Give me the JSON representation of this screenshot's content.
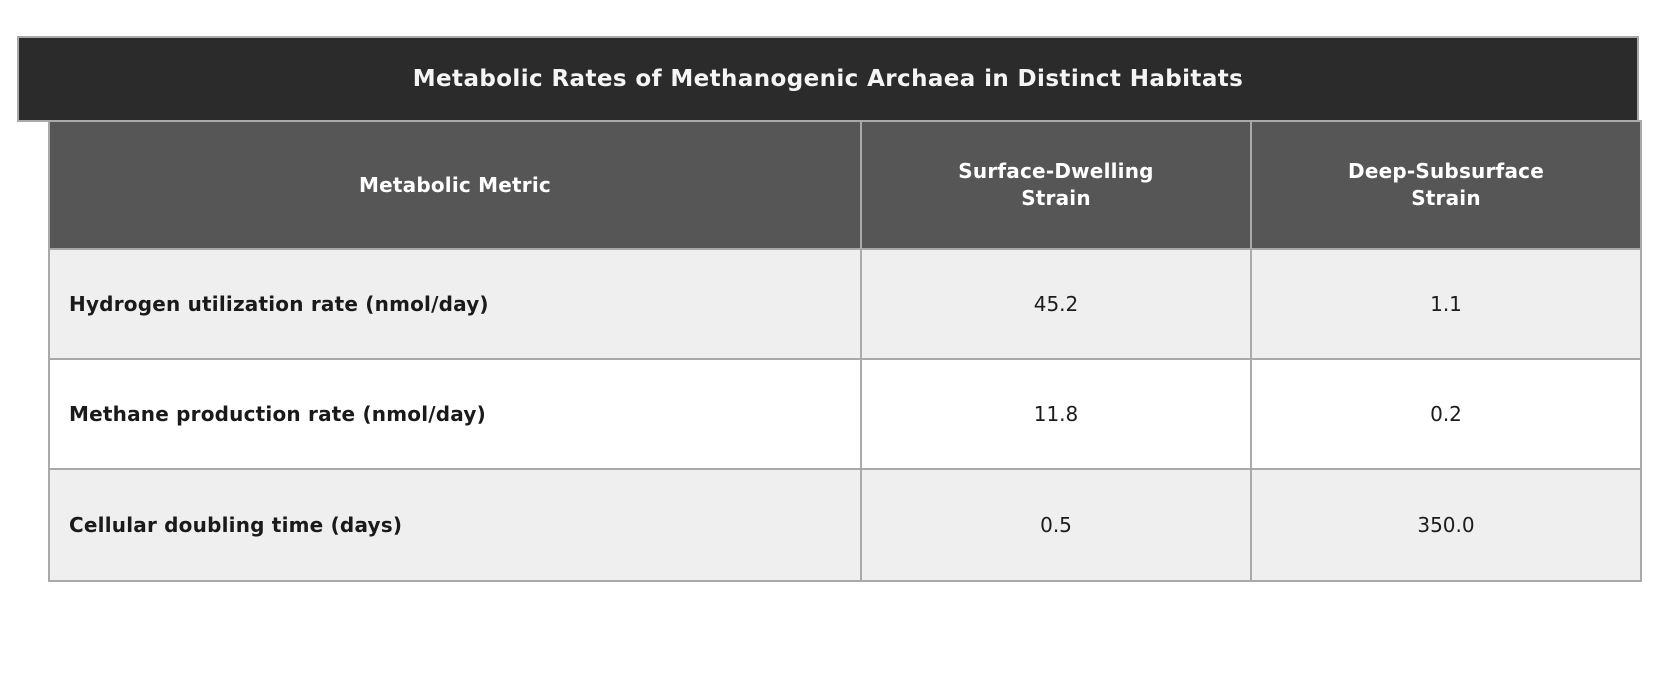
{
  "figure": {
    "title": "Metabolic Rates of Methanogenic Archaea in Distinct Habitats"
  },
  "table": {
    "headers": [
      "Metabolic Metric",
      "Surface-Dwelling\nStrain",
      "Deep-Subsurface\nStrain"
    ],
    "rows": [
      {
        "metric": "Hydrogen utilization rate (nmol/day)",
        "surface": "45.2",
        "deep": "1.1"
      },
      {
        "metric": "Methane production rate (nmol/day)",
        "surface": "11.8",
        "deep": "0.2"
      },
      {
        "metric": "Cellular doubling time (days)",
        "surface": "0.5",
        "deep": "350.0"
      }
    ]
  },
  "colors": {
    "title_bar_bg": "#2b2b2b",
    "title_text": "#f5f5f5",
    "header_bg": "#565656",
    "header_text": "#ffffff",
    "row_alt_bg": "#efefef",
    "row_bg": "#ffffff",
    "cell_text": "#1a1a1a",
    "border": "#a9a9a9",
    "page_bg": "#ffffff"
  },
  "chart_data": {
    "type": "table",
    "title": "Metabolic Rates of Methanogenic Archaea in Distinct Habitats",
    "columns": [
      "Metabolic Metric",
      "Surface-Dwelling Strain",
      "Deep-Subsurface Strain"
    ],
    "rows": [
      [
        "Hydrogen utilization rate (nmol/day)",
        45.2,
        1.1
      ],
      [
        "Methane production rate (nmol/day)",
        11.8,
        0.2
      ],
      [
        "Cellular doubling time (days)",
        0.5,
        350.0
      ]
    ],
    "layout_hints": {
      "title_position": "top-banner",
      "first_column_align": "left",
      "value_columns_align": "center",
      "zebra_striping": true
    }
  }
}
